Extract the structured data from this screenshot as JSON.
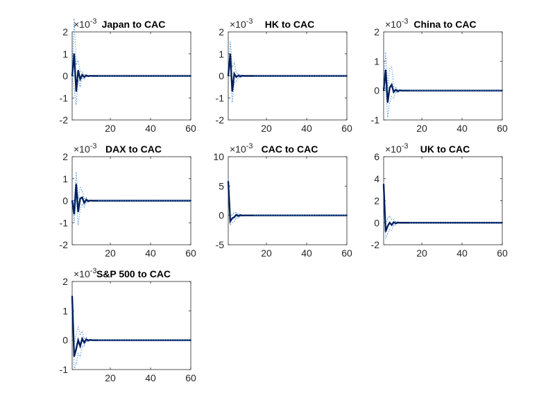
{
  "figure": {
    "background": "#ffffff"
  },
  "colors": {
    "response": "#001f5b",
    "band": "#4a90d9",
    "axis": "#262626",
    "zero_line": "#1f3e7a"
  },
  "chart_data": [
    {
      "type": "line",
      "title": "Japan to CAC",
      "exponent_label": "×10",
      "exponent_power": "-3",
      "xlim": [
        1,
        60
      ],
      "ylim": [
        -2,
        2
      ],
      "xticks": [
        20,
        40,
        60
      ],
      "yticks": [
        -2,
        -1,
        0,
        1,
        2
      ],
      "x": [
        1,
        2,
        3,
        4,
        5,
        6,
        7,
        8,
        9,
        10,
        11,
        12,
        13,
        14,
        15,
        60
      ],
      "series": [
        {
          "role": "response",
          "values": [
            0.0,
            1.0,
            -0.7,
            0.25,
            -0.15,
            0.05,
            -0.05,
            0.02,
            -0.01,
            0.005,
            0,
            0,
            0,
            0,
            0,
            0
          ]
        },
        {
          "role": "upper",
          "values": [
            0.0,
            2.6,
            0.5,
            0.7,
            0.2,
            0.18,
            0.05,
            0.06,
            0.02,
            0.015,
            0.01,
            0,
            0,
            0,
            0,
            0
          ]
        },
        {
          "role": "lower",
          "values": [
            0.0,
            -0.6,
            -1.3,
            -0.2,
            -0.5,
            -0.08,
            -0.15,
            -0.03,
            -0.04,
            -0.01,
            -0.01,
            0,
            0,
            0,
            0,
            0
          ]
        }
      ]
    },
    {
      "type": "line",
      "title": "HK to CAC",
      "exponent_label": "×10",
      "exponent_power": "-3",
      "xlim": [
        1,
        60
      ],
      "ylim": [
        -2,
        2
      ],
      "xticks": [
        20,
        40,
        60
      ],
      "yticks": [
        -2,
        -1,
        0,
        1,
        2
      ],
      "x": [
        1,
        2,
        3,
        4,
        5,
        6,
        7,
        8,
        9,
        10,
        11,
        12,
        13,
        14,
        15,
        60
      ],
      "series": [
        {
          "role": "response",
          "values": [
            0.0,
            1.0,
            -0.7,
            0.1,
            -0.05,
            0.02,
            -0.02,
            0.01,
            0,
            0,
            0,
            0,
            0,
            0,
            0,
            0
          ]
        },
        {
          "role": "upper",
          "values": [
            0.0,
            1.55,
            0.4,
            0.6,
            0.15,
            0.1,
            0.04,
            0.03,
            0.01,
            0,
            0,
            0,
            0,
            0,
            0,
            0
          ]
        },
        {
          "role": "lower",
          "values": [
            0.0,
            0.6,
            -1.2,
            -0.3,
            -0.25,
            -0.08,
            -0.08,
            -0.02,
            -0.02,
            0,
            0,
            0,
            0,
            0,
            0,
            0
          ]
        }
      ]
    },
    {
      "type": "line",
      "title": "China to CAC",
      "exponent_label": "×10",
      "exponent_power": "-3",
      "xlim": [
        1,
        60
      ],
      "ylim": [
        -1,
        2
      ],
      "xticks": [
        20,
        40,
        60
      ],
      "yticks": [
        -1,
        0,
        1,
        2
      ],
      "x": [
        1,
        2,
        3,
        4,
        5,
        6,
        7,
        8,
        9,
        10,
        11,
        12,
        13,
        14,
        15,
        60
      ],
      "series": [
        {
          "role": "response",
          "values": [
            0.0,
            0.7,
            -0.4,
            0.1,
            0.2,
            -0.05,
            0.03,
            -0.02,
            0.01,
            0,
            0,
            0,
            0,
            0,
            0,
            0
          ]
        },
        {
          "role": "upper",
          "values": [
            0.0,
            1.3,
            0.1,
            0.75,
            0.8,
            0.15,
            0.1,
            0.03,
            0.02,
            0.01,
            0,
            0,
            0,
            0,
            0,
            0
          ]
        },
        {
          "role": "lower",
          "values": [
            0.0,
            0.1,
            -0.9,
            -0.4,
            -0.2,
            -0.25,
            -0.05,
            -0.07,
            -0.01,
            -0.01,
            0,
            0,
            0,
            0,
            0,
            0
          ]
        }
      ]
    },
    {
      "type": "line",
      "title": "DAX to CAC",
      "exponent_label": "×10",
      "exponent_power": "-3",
      "xlim": [
        1,
        60
      ],
      "ylim": [
        -2,
        2
      ],
      "xticks": [
        20,
        40,
        60
      ],
      "yticks": [
        -2,
        -1,
        0,
        1,
        2
      ],
      "x": [
        1,
        2,
        3,
        4,
        5,
        6,
        7,
        8,
        9,
        10,
        11,
        12,
        13,
        14,
        15,
        60
      ],
      "series": [
        {
          "role": "response",
          "values": [
            0.0,
            -0.6,
            0.75,
            -0.5,
            0.1,
            0.15,
            -0.1,
            0.05,
            -0.02,
            0.01,
            0,
            0,
            0,
            0,
            0,
            0
          ]
        },
        {
          "role": "upper",
          "values": [
            0.0,
            -0.2,
            1.3,
            0.1,
            0.6,
            0.45,
            0.1,
            0.15,
            0.02,
            0.03,
            0,
            0,
            0,
            0,
            0,
            0
          ]
        },
        {
          "role": "lower",
          "values": [
            0.0,
            -1.0,
            0.2,
            -1.1,
            -0.4,
            -0.15,
            -0.3,
            -0.05,
            -0.06,
            -0.01,
            0,
            0,
            0,
            0,
            0,
            0
          ]
        }
      ]
    },
    {
      "type": "line",
      "title": "CAC to CAC",
      "exponent_label": "×10",
      "exponent_power": "-3",
      "xlim": [
        1,
        60
      ],
      "ylim": [
        -5,
        10
      ],
      "xticks": [
        20,
        40,
        60
      ],
      "yticks": [
        -5,
        0,
        5,
        10
      ],
      "x": [
        1,
        2,
        3,
        4,
        5,
        6,
        7,
        8,
        9,
        10,
        11,
        12,
        13,
        14,
        15,
        60
      ],
      "series": [
        {
          "role": "response",
          "values": [
            5.8,
            -1.0,
            -0.5,
            -0.3,
            0.1,
            -0.1,
            0.05,
            -0.02,
            0,
            0,
            0,
            0,
            0,
            0,
            0,
            0
          ]
        },
        {
          "role": "upper",
          "values": [
            6.2,
            -0.4,
            0.2,
            0.4,
            0.5,
            0.2,
            0.2,
            0.05,
            0.03,
            0,
            0,
            0,
            0,
            0,
            0,
            0
          ]
        },
        {
          "role": "lower",
          "values": [
            5.4,
            -1.6,
            -1.2,
            -1.0,
            -0.4,
            -0.4,
            -0.15,
            -0.1,
            -0.03,
            0,
            0,
            0,
            0,
            0,
            0,
            0
          ]
        }
      ]
    },
    {
      "type": "line",
      "title": "UK to CAC",
      "exponent_label": "×10",
      "exponent_power": "-3",
      "xlim": [
        1,
        60
      ],
      "ylim": [
        -2,
        6
      ],
      "xticks": [
        20,
        40,
        60
      ],
      "yticks": [
        -2,
        0,
        2,
        4,
        6
      ],
      "x": [
        1,
        2,
        3,
        4,
        5,
        6,
        7,
        8,
        9,
        10,
        11,
        12,
        13,
        14,
        15,
        60
      ],
      "series": [
        {
          "role": "response",
          "values": [
            3.5,
            -0.8,
            -0.3,
            0.0,
            -0.2,
            0.05,
            -0.05,
            0.02,
            0,
            0,
            0,
            0,
            0,
            0,
            0,
            0
          ]
        },
        {
          "role": "upper",
          "values": [
            3.7,
            -0.2,
            0.4,
            0.6,
            0.3,
            0.3,
            0.1,
            0.07,
            0.02,
            0,
            0,
            0,
            0,
            0,
            0,
            0
          ]
        },
        {
          "role": "lower",
          "values": [
            3.3,
            -1.4,
            -1.0,
            -0.6,
            -0.7,
            -0.2,
            -0.2,
            -0.04,
            -0.02,
            0,
            0,
            0,
            0,
            0,
            0,
            0
          ]
        }
      ]
    },
    {
      "type": "line",
      "title": "S&P 500 to CAC",
      "exponent_label": "×10",
      "exponent_power": "-3",
      "xlim": [
        1,
        60
      ],
      "ylim": [
        -1,
        2
      ],
      "xticks": [
        20,
        40,
        60
      ],
      "yticks": [
        -1,
        0,
        1,
        2
      ],
      "x": [
        1,
        2,
        3,
        4,
        5,
        6,
        7,
        8,
        9,
        10,
        11,
        12,
        13,
        14,
        15,
        60
      ],
      "series": [
        {
          "role": "response",
          "values": [
            1.5,
            -0.55,
            -0.3,
            0.0,
            -0.2,
            0.05,
            -0.08,
            0.03,
            -0.01,
            0.01,
            0,
            0,
            0,
            0,
            0,
            0
          ]
        },
        {
          "role": "upper",
          "values": [
            1.5,
            -0.1,
            0.2,
            0.45,
            0.2,
            0.3,
            0.05,
            0.1,
            0.02,
            0.03,
            0,
            0,
            0,
            0,
            0,
            0
          ]
        },
        {
          "role": "lower",
          "values": [
            1.5,
            -1.0,
            -0.8,
            -0.45,
            -0.55,
            -0.2,
            -0.2,
            -0.04,
            -0.04,
            -0.01,
            0,
            0,
            0,
            0,
            0,
            0
          ]
        }
      ]
    }
  ]
}
